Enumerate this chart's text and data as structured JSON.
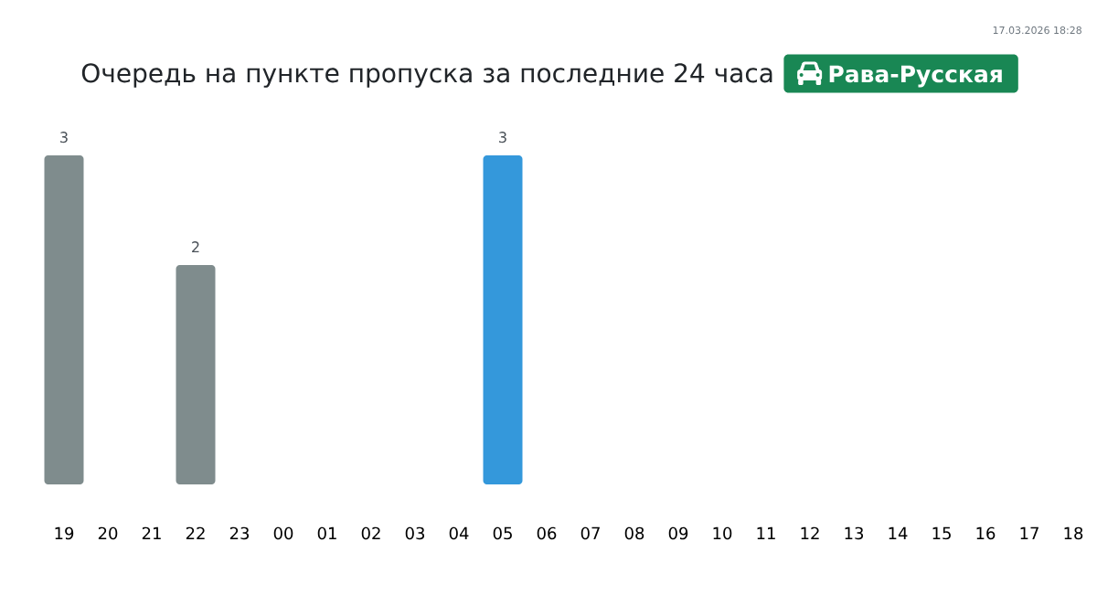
{
  "chart_data": {
    "type": "bar",
    "title": "Очередь на пункте пропуска за последние 24 часа",
    "subtitle": "Рава-Русская",
    "annotations": [
      "17.03.2026 18:28"
    ],
    "categories": [
      "19",
      "20",
      "21",
      "22",
      "23",
      "00",
      "01",
      "02",
      "03",
      "04",
      "05",
      "06",
      "07",
      "08",
      "09",
      "10",
      "11",
      "12",
      "13",
      "14",
      "15",
      "16",
      "17",
      "18"
    ],
    "values": [
      3,
      0,
      0,
      2,
      0,
      0,
      0,
      0,
      0,
      0,
      3,
      0,
      0,
      0,
      0,
      0,
      0,
      0,
      0,
      0,
      0,
      0,
      0,
      0
    ],
    "colors": [
      "#7f8c8d",
      "#7f8c8d",
      "#7f8c8d",
      "#7f8c8d",
      "#7f8c8d",
      "#7f8c8d",
      "#7f8c8d",
      "#7f8c8d",
      "#7f8c8d",
      "#7f8c8d",
      "#3498db",
      "#7f8c8d",
      "#7f8c8d",
      "#7f8c8d",
      "#7f8c8d",
      "#7f8c8d",
      "#7f8c8d",
      "#7f8c8d",
      "#7f8c8d",
      "#7f8c8d",
      "#7f8c8d",
      "#7f8c8d",
      "#7f8c8d",
      "#7f8c8d"
    ],
    "value_labels": [
      "3",
      null,
      null,
      "2",
      null,
      null,
      null,
      null,
      null,
      null,
      "3",
      null,
      null,
      null,
      null,
      null,
      null,
      null,
      null,
      null,
      null,
      null,
      null,
      null
    ],
    "tick_labels": "x"
  }
}
